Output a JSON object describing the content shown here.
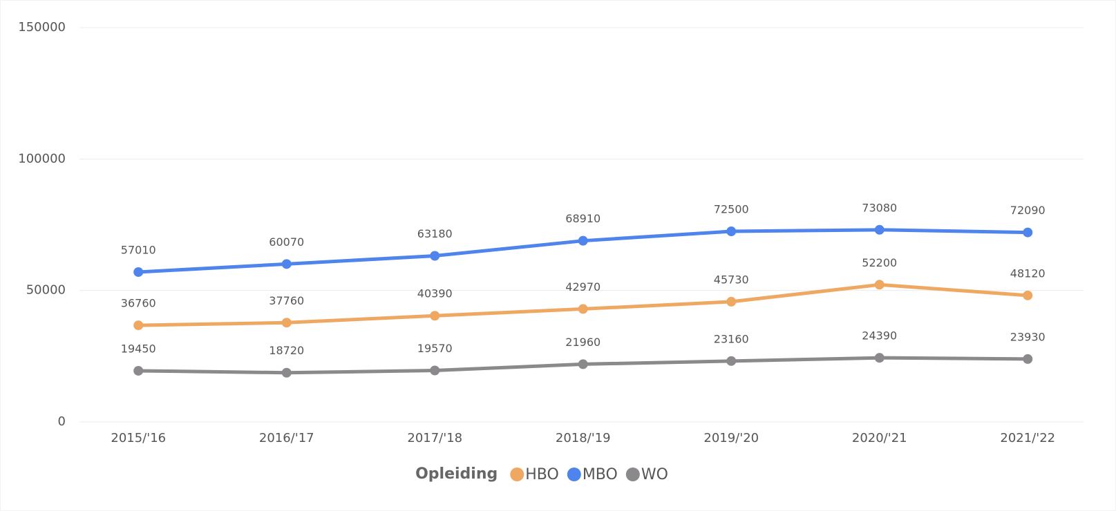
{
  "chart_data": {
    "type": "line",
    "categories": [
      "2015/'16",
      "2016/'17",
      "2017/'18",
      "2018/'19",
      "2019/'20",
      "2020/'21",
      "2021/'22"
    ],
    "series": [
      {
        "name": "HBO",
        "color": "#eea862",
        "values": [
          36760,
          37760,
          40390,
          42970,
          45730,
          52200,
          48120
        ]
      },
      {
        "name": "MBO",
        "color": "#4f84ec",
        "values": [
          57010,
          60070,
          63180,
          68910,
          72500,
          73080,
          72090
        ]
      },
      {
        "name": "WO",
        "color": "#8b898b",
        "values": [
          19450,
          18720,
          19570,
          21960,
          23160,
          24390,
          23930
        ]
      }
    ],
    "ylim": [
      0,
      150000
    ],
    "yticks": [
      0,
      50000,
      100000,
      150000
    ],
    "grid": true,
    "legend_title": "Opleiding",
    "legend": "bottom"
  }
}
